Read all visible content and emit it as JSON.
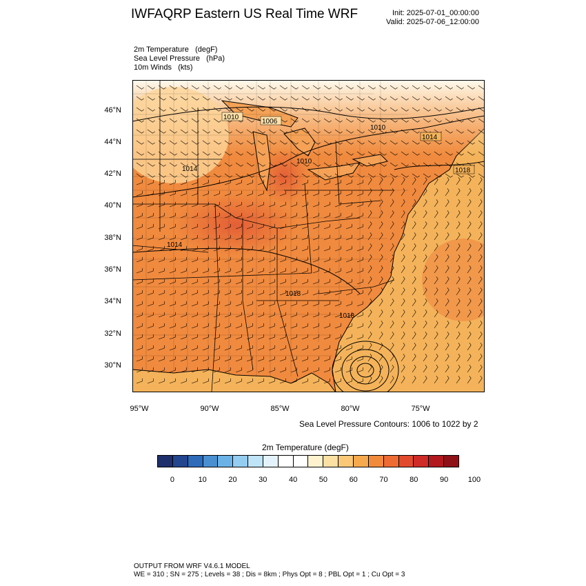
{
  "header": {
    "title": "IWFAQRP Eastern US Real Time WRF",
    "init": "Init: 2025-07-01_00:00:00",
    "valid": "Valid: 2025-07-06_12:00:00"
  },
  "fields": [
    {
      "name": "2m Temperature",
      "unit": "(degF)"
    },
    {
      "name": "Sea Level Pressure",
      "unit": "(hPa)"
    },
    {
      "name": "10m Winds",
      "unit": "(kts)"
    }
  ],
  "map": {
    "lat_ticks": [
      "46°N",
      "44°N",
      "42°N",
      "40°N",
      "38°N",
      "36°N",
      "34°N",
      "32°N",
      "30°N"
    ],
    "lon_ticks": [
      "95°W",
      "90°W",
      "85°W",
      "80°W",
      "75°W"
    ],
    "pressure_labels": [
      "1010",
      "1006",
      "1010",
      "1014",
      "1010",
      "1014",
      "1018",
      "1014",
      "1018",
      "1018"
    ],
    "contour_note": "Sea Level Pressure Contours: 1006 to 1022 by 2",
    "colors": {
      "water": "#f4b35a",
      "land": "#f08a3e",
      "hot": "#e8633a",
      "cool": "#fde0a8",
      "coast": "#000000"
    }
  },
  "colorbar": {
    "title": "2m Temperature  (degF)",
    "colors": [
      "#1e2f6b",
      "#24468f",
      "#2e6bb8",
      "#4a90d0",
      "#6bb3e6",
      "#95cdf0",
      "#bfe3f7",
      "#e4f3fb",
      "#ffffff",
      "#ffffff",
      "#fff3cf",
      "#fde0a3",
      "#fbc878",
      "#f7aa4d",
      "#f28a3c",
      "#ee6b33",
      "#e24a2e",
      "#cf2b27",
      "#b3181f",
      "#8f1118"
    ],
    "labels": [
      "0",
      "10",
      "20",
      "30",
      "40",
      "50",
      "60",
      "70",
      "80",
      "90",
      "100"
    ]
  },
  "footer": {
    "line1": "OUTPUT FROM WRF V4.6.1 MODEL",
    "line2": "WE = 310 ; SN = 275 ; Levels = 38 ; Dis = 8km ; Phys Opt = 8 ; PBL Opt = 1 ; Cu Opt = 3"
  }
}
